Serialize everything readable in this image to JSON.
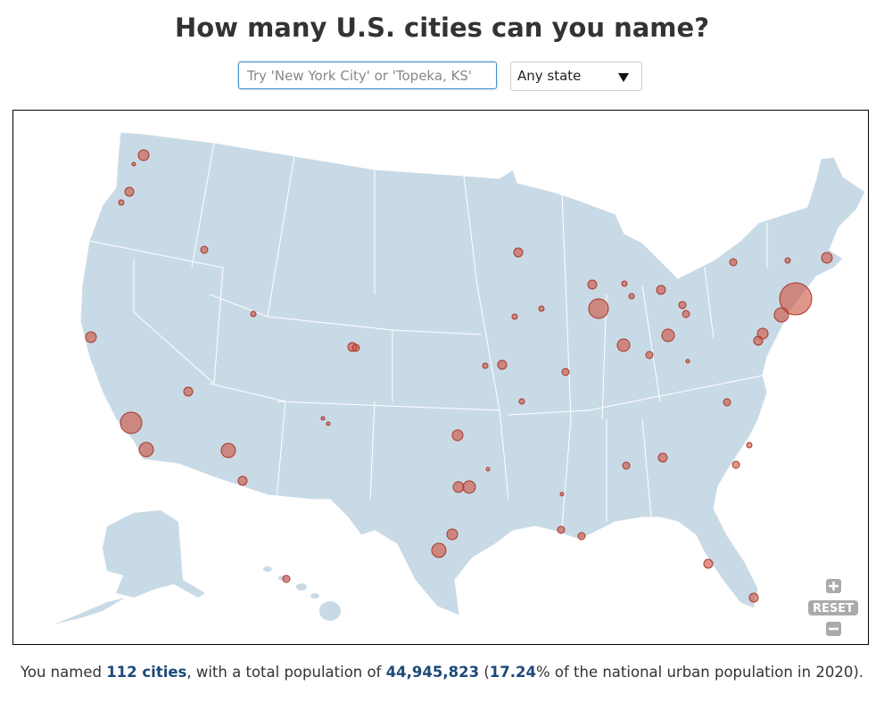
{
  "header": {
    "title": "How many U.S. cities can you name?"
  },
  "controls": {
    "search_placeholder": "Try 'New York City' or 'Topeka, KS'",
    "state_select": "Any state"
  },
  "map": {
    "reset": "RESET"
  },
  "summary": {
    "prefix": "You named",
    "count": "112 cities",
    "middle": ", with a total population of",
    "population": "44,945,823",
    "paren": "(",
    "percent": "17.24",
    "suffix": "% of the national urban population in 2020)."
  }
}
